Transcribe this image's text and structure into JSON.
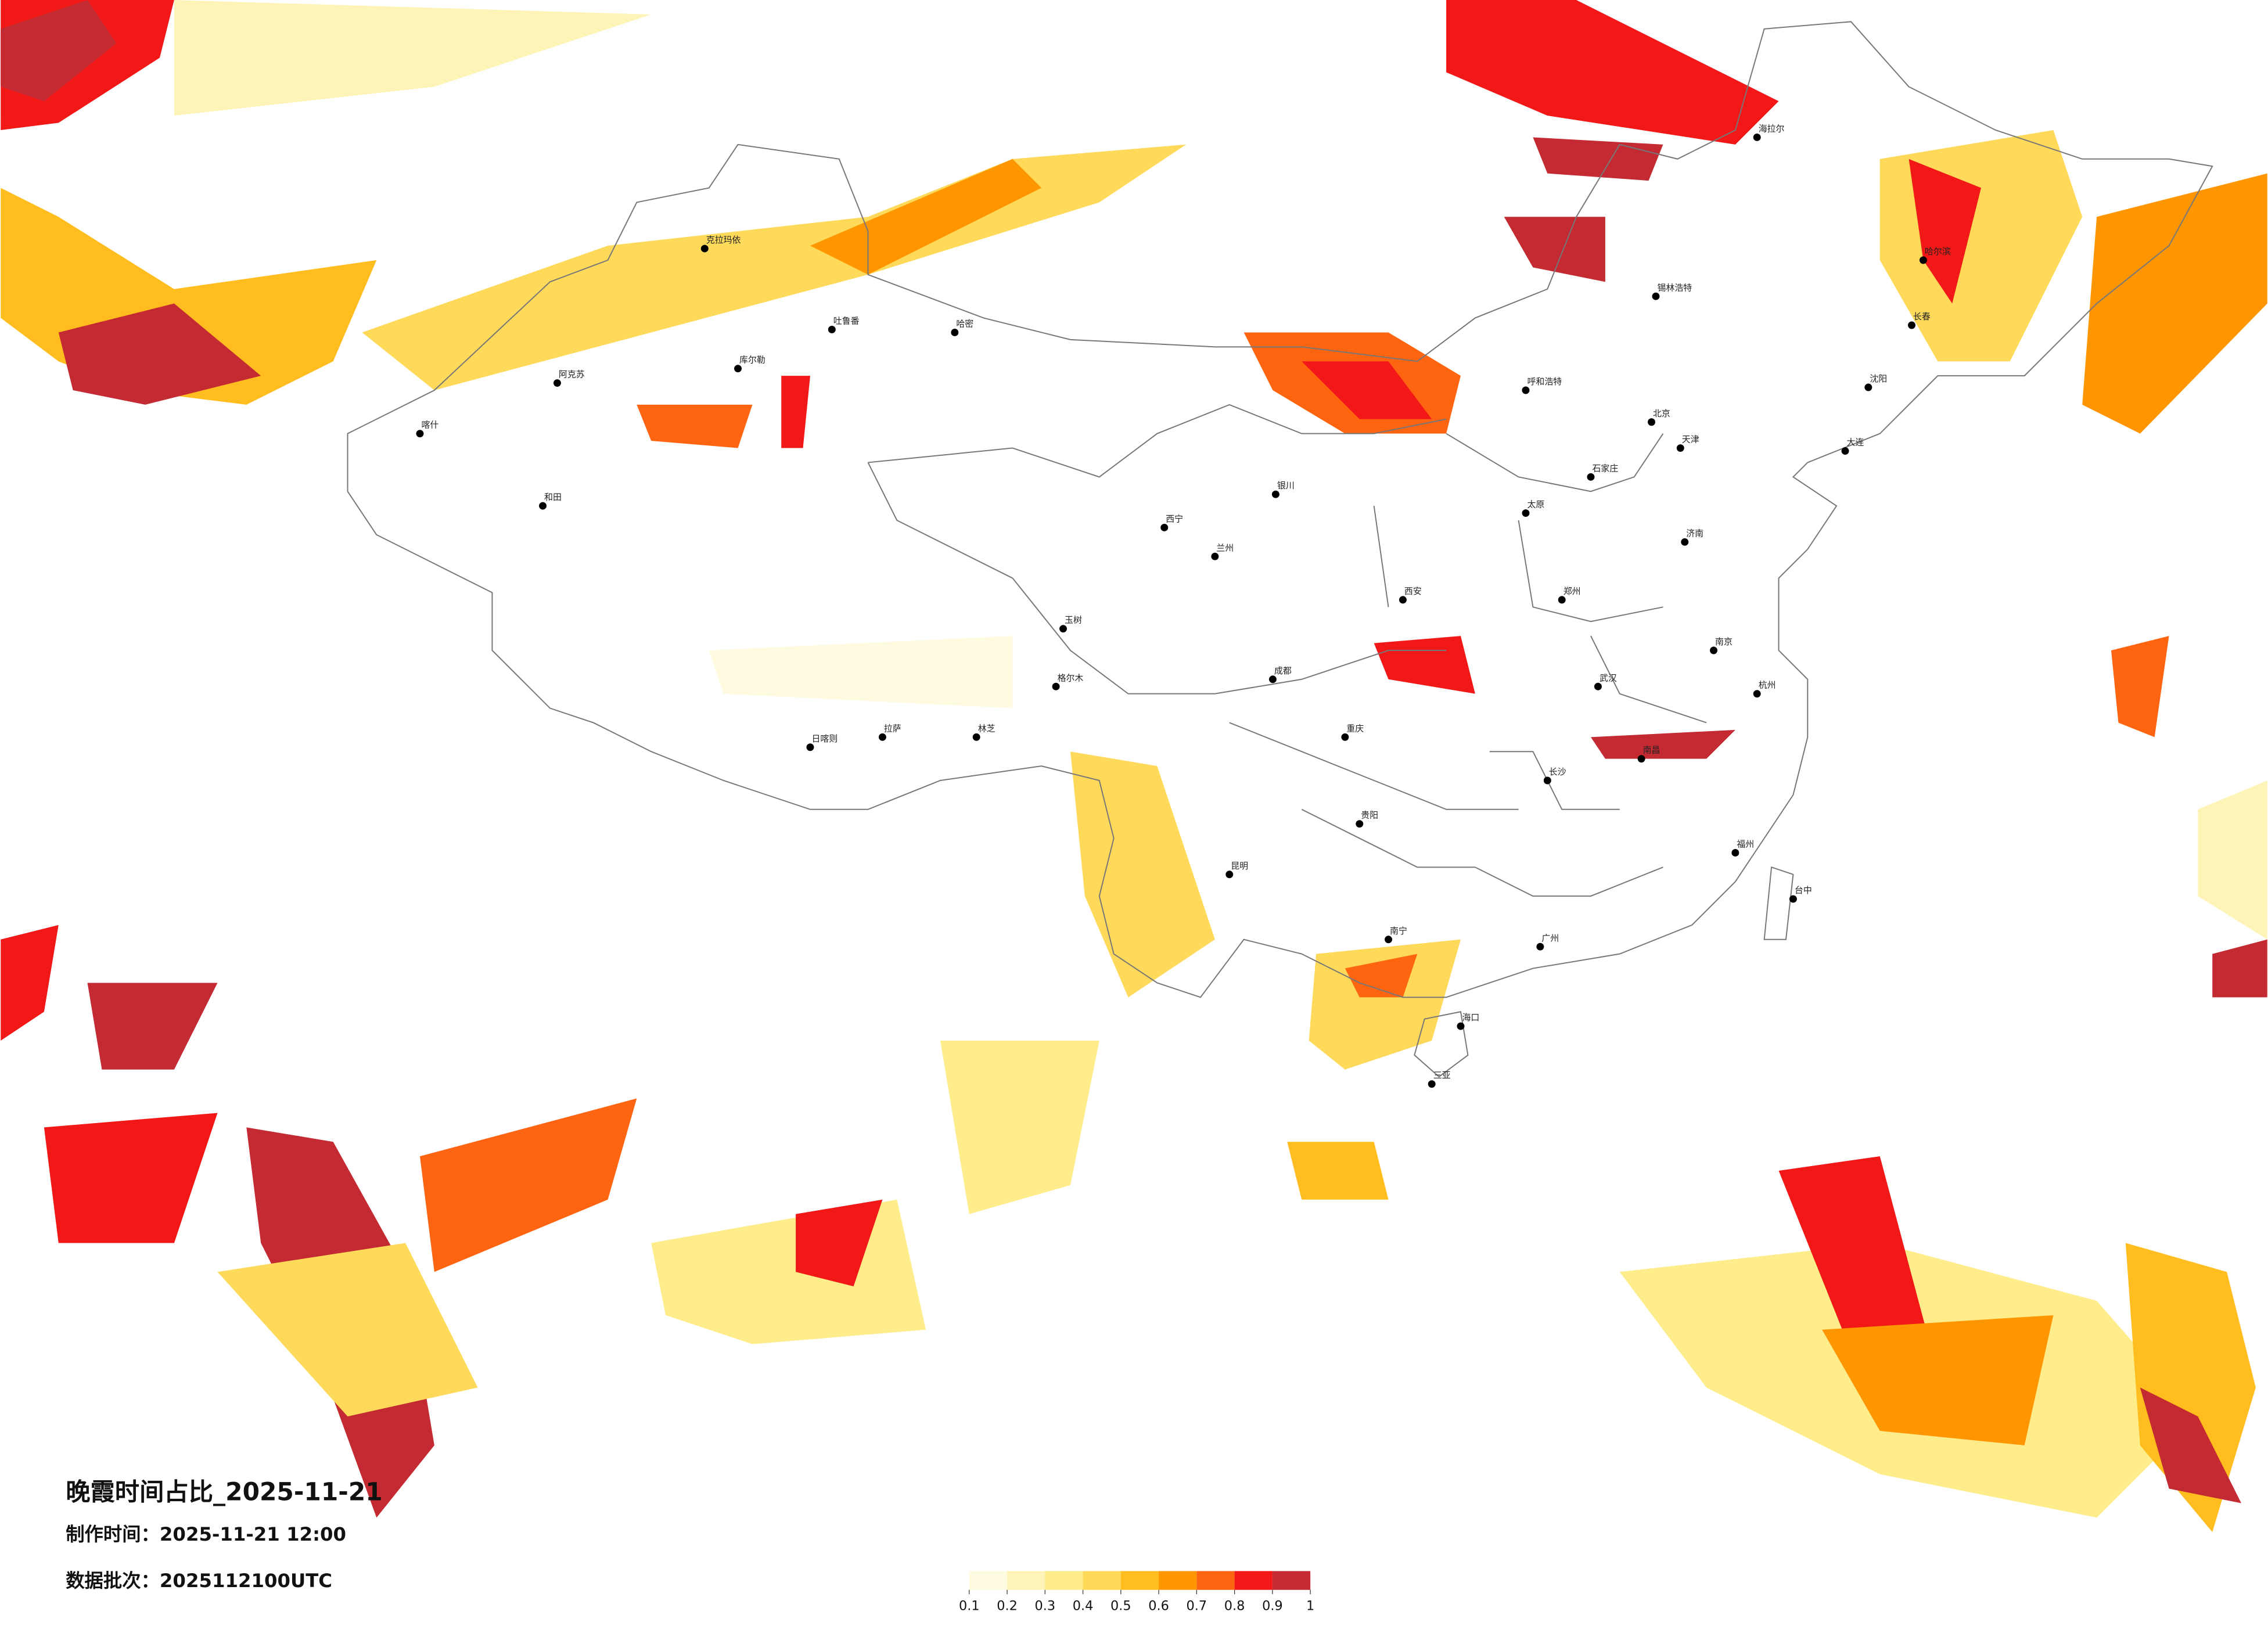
{
  "title": "晚霞时间占比_2025-11-21",
  "made_time": "制作时间：2025-11-21 12:00",
  "data_batch": "数据批次：2025112100UTC",
  "colorbar": {
    "ticks": [
      0.1,
      0.2,
      0.3,
      0.4,
      0.5,
      0.6,
      0.7,
      0.8,
      0.9,
      1
    ],
    "colors": [
      "#fffbe0",
      "#fff4b8",
      "#ffec8a",
      "#ffd95a",
      "#ffbd1f",
      "#ff9600",
      "#ff6410",
      "#f21818",
      "#c42a32"
    ]
  },
  "cities": [
    "克拉玛依",
    "阿克苏",
    "和田",
    "喀什",
    "库尔勒",
    "哈密",
    "吐鲁番",
    "格尔木",
    "拉萨",
    "日喀则",
    "林芝",
    "玉树",
    "西宁",
    "兰州",
    "银川",
    "呼和浩特",
    "海拉尔",
    "锡林浩特",
    "哈尔滨",
    "长春",
    "沈阳",
    "大连",
    "北京",
    "天津",
    "石家庄",
    "太原",
    "济南",
    "郑州",
    "西安",
    "武汉",
    "成都",
    "重庆",
    "长沙",
    "南昌",
    "贵阳",
    "昆明",
    "南宁",
    "广州",
    "海口",
    "三亚",
    "福州",
    "台中",
    "杭州",
    "南京"
  ]
}
